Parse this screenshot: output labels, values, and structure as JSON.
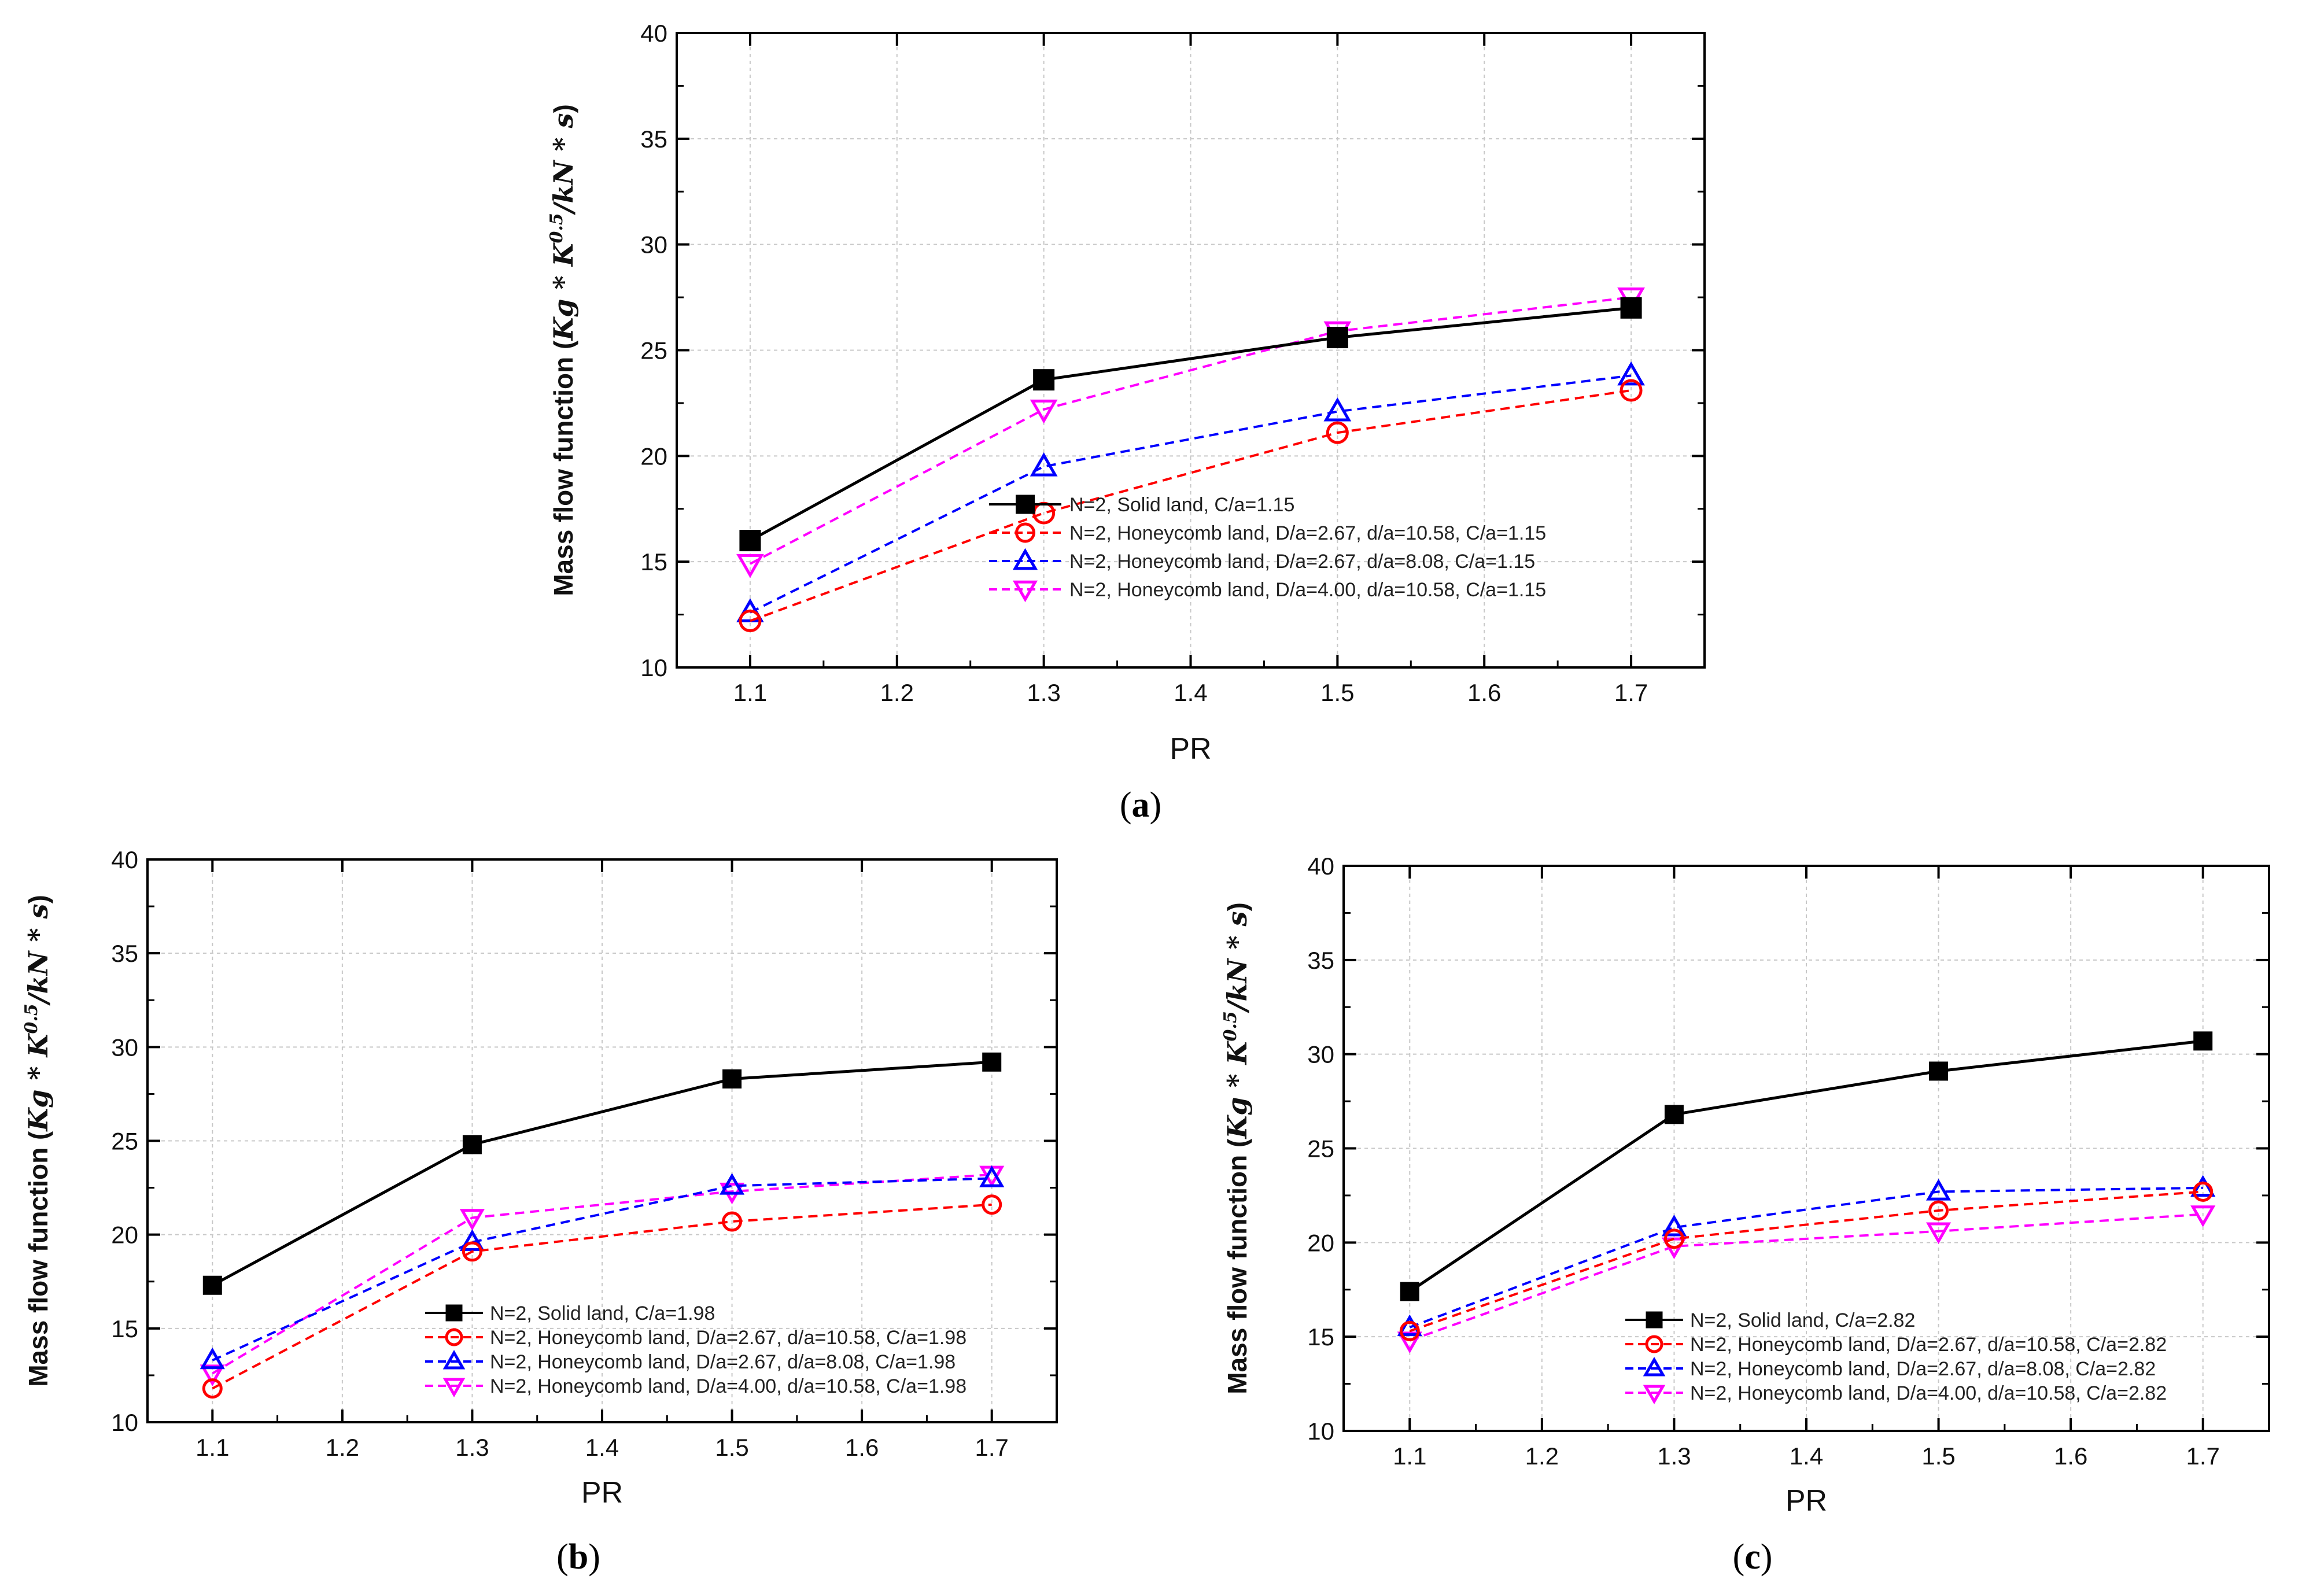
{
  "chart_data": [
    {
      "id": "a",
      "type": "line",
      "caption_letter": "a",
      "xlabel": "PR",
      "ylabel_text": "Mass flow function (",
      "ylabel_math": "Kg * K",
      "ylabel_sup": "0.5",
      "ylabel_math2": "/kN * s",
      "ylabel_close": ")",
      "xlim": [
        1.05,
        1.75
      ],
      "ylim": [
        10,
        40
      ],
      "xticks": [
        "1.1",
        "1.2",
        "1.3",
        "1.4",
        "1.5",
        "1.6",
        "1.7"
      ],
      "yticks": [
        "10",
        "15",
        "20",
        "25",
        "30",
        "35",
        "40"
      ],
      "grid": true,
      "legend_position": "lower-right",
      "x": [
        1.1,
        1.3,
        1.5,
        1.7
      ],
      "series": [
        {
          "name": "N=2, Solid land, C/a=1.15",
          "values": [
            16.0,
            23.6,
            25.6,
            27.0
          ],
          "color": "#000000",
          "marker": "square",
          "dash": "solid"
        },
        {
          "name": "N=2, Honeycomb land, D/a=2.67, d/a=10.58, C/a=1.15",
          "values": [
            12.2,
            17.3,
            21.1,
            23.1
          ],
          "color": "#ff0000",
          "marker": "circle",
          "dash": "dashed"
        },
        {
          "name": "N=2, Honeycomb land, D/a=2.67, d/a=8.08, C/a=1.15",
          "values": [
            12.6,
            19.5,
            22.1,
            23.8
          ],
          "color": "#0000ff",
          "marker": "triangle-up",
          "dash": "dashed"
        },
        {
          "name": "N=2, Honeycomb land, D/a=4.00, d/a=10.58, C/a=1.15",
          "values": [
            14.9,
            22.2,
            25.9,
            27.5
          ],
          "color": "#ff00ff",
          "marker": "triangle-down",
          "dash": "dashed"
        }
      ]
    },
    {
      "id": "b",
      "type": "line",
      "caption_letter": "b",
      "xlabel": "PR",
      "ylabel_text": "Mass flow function (",
      "ylabel_math": "Kg * K",
      "ylabel_sup": "0.5",
      "ylabel_math2": "/kN * s",
      "ylabel_close": ")",
      "xlim": [
        1.05,
        1.75
      ],
      "ylim": [
        10,
        40
      ],
      "xticks": [
        "1.1",
        "1.2",
        "1.3",
        "1.4",
        "1.5",
        "1.6",
        "1.7"
      ],
      "yticks": [
        "10",
        "15",
        "20",
        "25",
        "30",
        "35",
        "40"
      ],
      "grid": true,
      "legend_position": "lower-right",
      "x": [
        1.1,
        1.3,
        1.5,
        1.7
      ],
      "series": [
        {
          "name": "N=2, Solid land, C/a=1.98",
          "values": [
            17.3,
            24.8,
            28.3,
            29.2
          ],
          "color": "#000000",
          "marker": "square",
          "dash": "solid"
        },
        {
          "name": "N=2, Honeycomb land, D/a=2.67, d/a=10.58, C/a=1.98",
          "values": [
            11.8,
            19.1,
            20.7,
            21.6
          ],
          "color": "#ff0000",
          "marker": "circle",
          "dash": "dashed"
        },
        {
          "name": "N=2, Honeycomb land, D/a=2.67, d/a=8.08, C/a=1.98",
          "values": [
            13.3,
            19.6,
            22.6,
            23.0
          ],
          "color": "#0000ff",
          "marker": "triangle-up",
          "dash": "dashed"
        },
        {
          "name": "N=2, Honeycomb land, D/a=4.00, d/a=10.58, C/a=1.98",
          "values": [
            12.6,
            20.9,
            22.3,
            23.2
          ],
          "color": "#ff00ff",
          "marker": "triangle-down",
          "dash": "dashed"
        }
      ]
    },
    {
      "id": "c",
      "type": "line",
      "caption_letter": "c",
      "xlabel": "PR",
      "ylabel_text": "Mass flow function (",
      "ylabel_math": "Kg * K",
      "ylabel_sup": "0.5",
      "ylabel_math2": "/kN * s",
      "ylabel_close": ")",
      "xlim": [
        1.05,
        1.75
      ],
      "ylim": [
        10,
        40
      ],
      "xticks": [
        "1.1",
        "1.2",
        "1.3",
        "1.4",
        "1.5",
        "1.6",
        "1.7"
      ],
      "yticks": [
        "10",
        "15",
        "20",
        "25",
        "30",
        "35",
        "40"
      ],
      "grid": true,
      "legend_position": "lower-right",
      "x": [
        1.1,
        1.3,
        1.5,
        1.7
      ],
      "series": [
        {
          "name": "N=2, Solid land, C/a=2.82",
          "values": [
            17.4,
            26.8,
            29.1,
            30.7
          ],
          "color": "#000000",
          "marker": "square",
          "dash": "solid"
        },
        {
          "name": "N=2, Honeycomb land, D/a=2.67, d/a=10.58, C/a=2.82",
          "values": [
            15.3,
            20.2,
            21.7,
            22.7
          ],
          "color": "#ff0000",
          "marker": "circle",
          "dash": "dashed"
        },
        {
          "name": "N=2, Honeycomb land, D/a=2.67, d/a=8.08, C/a=2.82",
          "values": [
            15.5,
            20.8,
            22.7,
            22.9
          ],
          "color": "#0000ff",
          "marker": "triangle-up",
          "dash": "dashed"
        },
        {
          "name": "N=2, Honeycomb land, D/a=4.00, d/a=10.58, C/a=2.82",
          "values": [
            14.8,
            19.8,
            20.6,
            21.5
          ],
          "color": "#ff00ff",
          "marker": "triangle-down",
          "dash": "dashed"
        }
      ]
    }
  ]
}
